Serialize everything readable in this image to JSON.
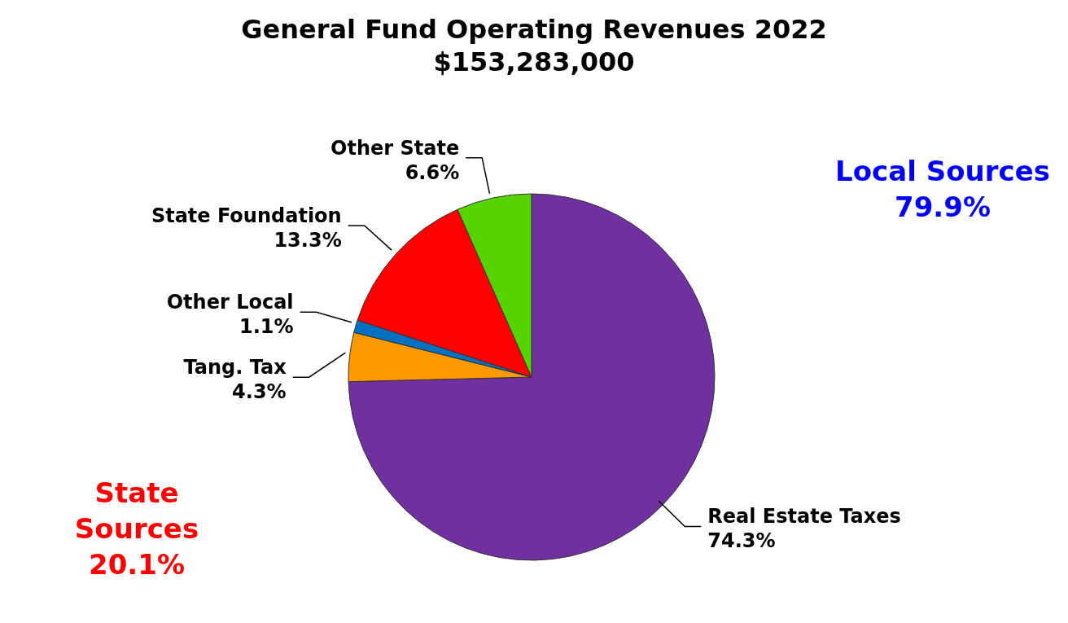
{
  "chart_data": {
    "type": "pie",
    "title": "General Fund Operating Revenues 2022",
    "subtitle": "$153,283,000",
    "categories": [
      "Real Estate Taxes",
      "Tang. Tax",
      "Other Local",
      "State Foundation",
      "Other State"
    ],
    "values": [
      74.3,
      4.3,
      1.1,
      13.3,
      6.6
    ],
    "value_labels": [
      "74.3%",
      "4.3%",
      "1.1%",
      "13.3%",
      "6.6%"
    ],
    "colors": [
      "#7030a0",
      "#ff9900",
      "#0070c0",
      "#ff0000",
      "#55d400"
    ],
    "annotations": [
      "Local Sources\n79.9%",
      "State\nSources\n20.1%"
    ],
    "legend": false
  }
}
